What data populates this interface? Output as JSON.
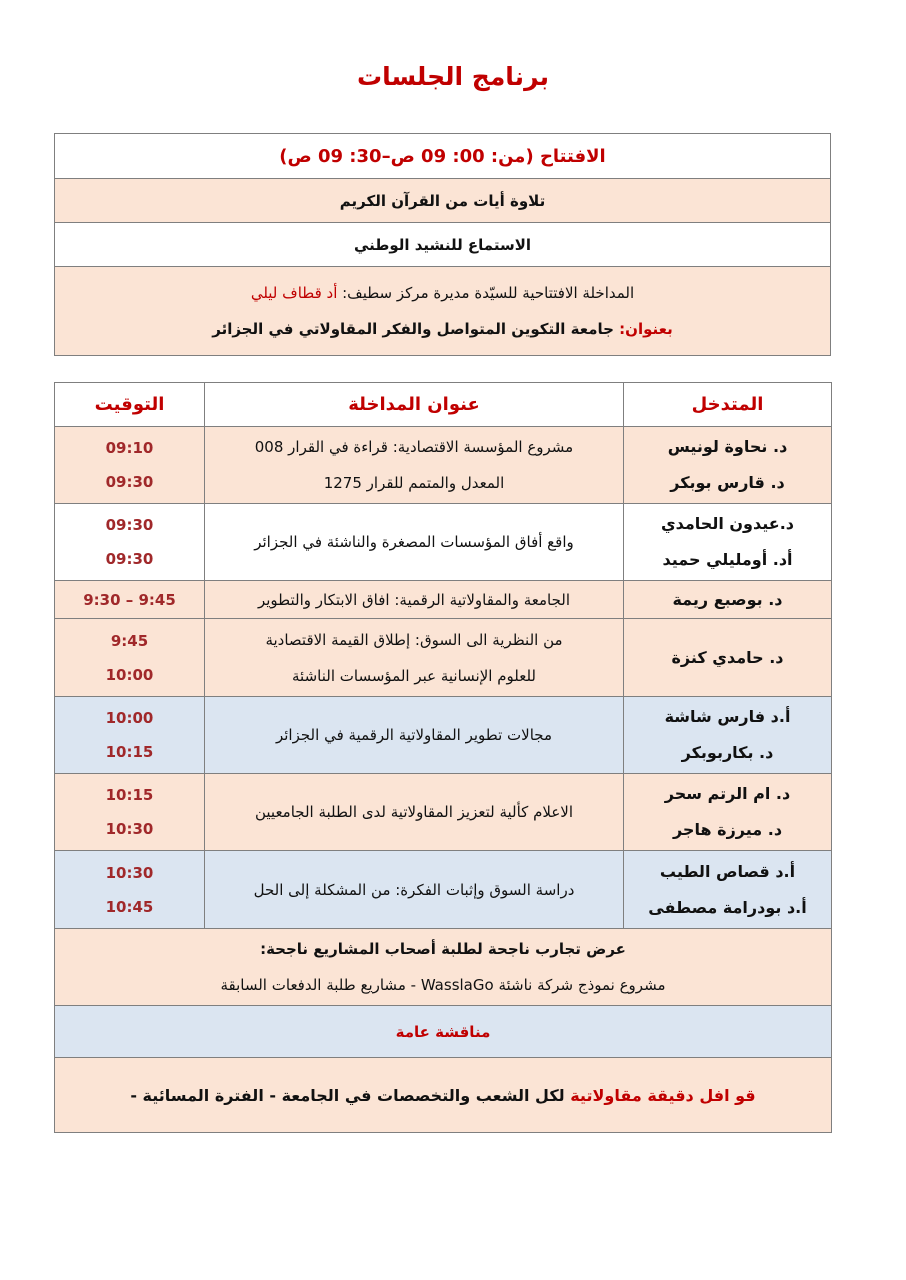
{
  "title": "برنامج الجلسات",
  "opening": {
    "heading": "الافتتاح (من: 00: 09 ص–30: 09 ص)",
    "quran": "تلاوة أيات من القرآن الكريم",
    "anthem": "الاستماع للنشيد الوطني",
    "speech_prefix": "المداخلة الافتتاحية للسيّدة مديرة مركز سطيف: ",
    "speech_name": "أد قطاف ليلي",
    "topic_label": "بعنوان: ",
    "topic": "جامعة التكوين المتواصل والفكر المقاولاتي في الجزائر"
  },
  "colors": {
    "red": "#c00000",
    "peach": "#fbe4d5",
    "blue": "#dbe5f1"
  },
  "table": {
    "headers": {
      "speaker": "المتدخل",
      "title": "عنوان المداخلة",
      "time": "التوقيت"
    },
    "rows": [
      {
        "speakers": [
          "د. نحاوة لونيس",
          "د. قارس بوبكر"
        ],
        "title": [
          "مشروع المؤسسة الاقتصادية: قراءة في القرار 008",
          "المعدل والمتمم للقرار 1275"
        ],
        "times": [
          "09:10",
          "09:30"
        ],
        "bg": "peach"
      },
      {
        "speakers": [
          "د.عيدون الحامدي",
          "أد. أومليلي حميد"
        ],
        "title": [
          "واقع أفاق المؤسسات المصغرة والناشئة في الجزائر"
        ],
        "times": [
          "09:30",
          "09:30"
        ],
        "bg": "white"
      },
      {
        "speakers": [
          "د. بوصبع ريمة"
        ],
        "title": [
          "الجامعة والمقاولاتية الرقمية: افاق الابتكار والتطوير"
        ],
        "times": [
          "9:30 – 9:45"
        ],
        "bg": "peach"
      },
      {
        "speakers": [
          "د. حامدي كنزة"
        ],
        "title": [
          "من النظرية الى السوق: إطلاق القيمة الاقتصادية",
          "للعلوم الإنسانية عبر المؤسسات الناشئة"
        ],
        "times": [
          "9:45",
          "10:00"
        ],
        "bg": "peach"
      },
      {
        "speakers": [
          "أ.د فارس شاشة",
          "د. بكاربوبكر"
        ],
        "title": [
          "مجالات تطوير المقاولاتية الرقمية في الجزائر"
        ],
        "times": [
          "10:00",
          "10:15"
        ],
        "bg": "blue"
      },
      {
        "speakers": [
          "د. ام الرتم سحر",
          "د. ميرزة هاجر"
        ],
        "title": [
          "الاعلام كألية لتعزيز المقاولاتية لدى الطلبة الجامعيين"
        ],
        "times": [
          "10:15",
          "10:30"
        ],
        "bg": "peach"
      },
      {
        "speakers": [
          "أ.د قصاص الطيب",
          "أ.د بودرامة مصطفى"
        ],
        "title": [
          "دراسة السوق وإثبات الفكرة: من المشكلة إلى الحل"
        ],
        "times": [
          "10:30",
          "10:45"
        ],
        "bg": "blue"
      }
    ],
    "experiences_heading": "عرض تجارب ناجحة لطلبة أصحاب المشاريع ناجحة:",
    "experiences_text": "مشروع نموذج شركة ناشئة WasslaGo - مشاريع طلبة الدفعات السابقة",
    "discussion": "مناقشة عامة",
    "caravan_red": "قو افل دقيقة مقاولاتية",
    "caravan_rest": " لكل الشعب والتخصصات في الجامعة - الفترة المسائية -"
  }
}
